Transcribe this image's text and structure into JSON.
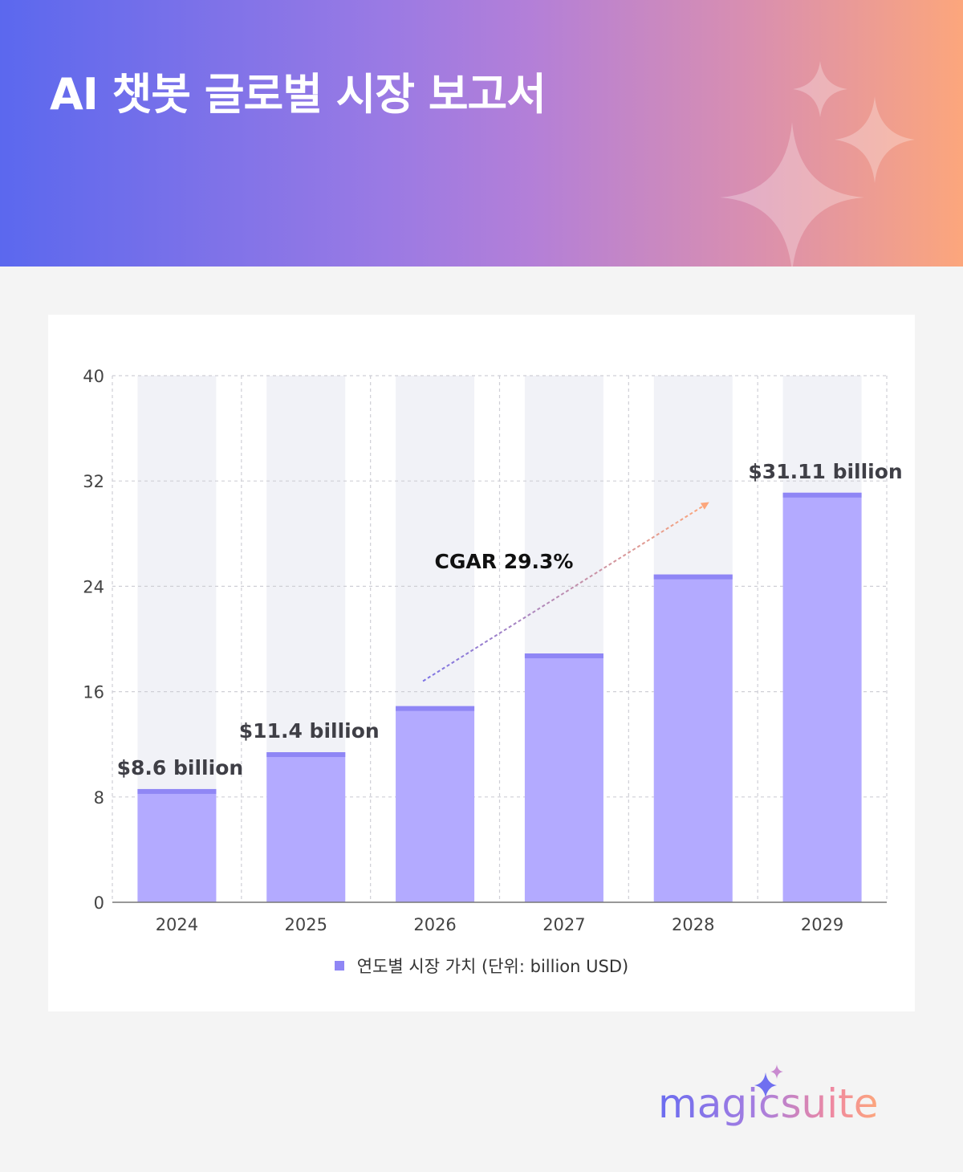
{
  "header": {
    "title": "AI 챗봇 글로벌 시장 보고서",
    "decoration": "sparkle-icons"
  },
  "chart_data": {
    "type": "bar",
    "categories": [
      "2024",
      "2025",
      "2026",
      "2027",
      "2028",
      "2029"
    ],
    "series": [
      {
        "name": "연도별 시장 가치 (단위: billion USD)",
        "values": [
          8.6,
          11.4,
          14.9,
          18.9,
          24.9,
          31.11
        ]
      }
    ],
    "data_labels": [
      {
        "category": "2024",
        "text": "$8.6 billion"
      },
      {
        "category": "2025",
        "text": "$11.4 billion"
      },
      {
        "category": "2029",
        "text": "$31.11 billion"
      }
    ],
    "annotation": {
      "text": "CGAR 29.3%",
      "arrow_from": {
        "category": "2026",
        "value": 16.8
      },
      "arrow_to": {
        "category": "2028",
        "value": 30.4
      }
    },
    "yticks": [
      "0",
      "8",
      "16",
      "24",
      "32",
      "40"
    ],
    "ylim": [
      0,
      40
    ],
    "grid": true,
    "legend_position": "bottom",
    "colors": {
      "bar": "#b3aaff",
      "bar_top": "#8f86f5",
      "background_column": "#f1f2f7",
      "arrow_start": "#7c73e6",
      "arrow_end": "#fca67c"
    }
  },
  "legend": {
    "label": "연도별 시장 가치 (단위: billion USD)"
  },
  "brand": {
    "name": "magicsuite"
  }
}
